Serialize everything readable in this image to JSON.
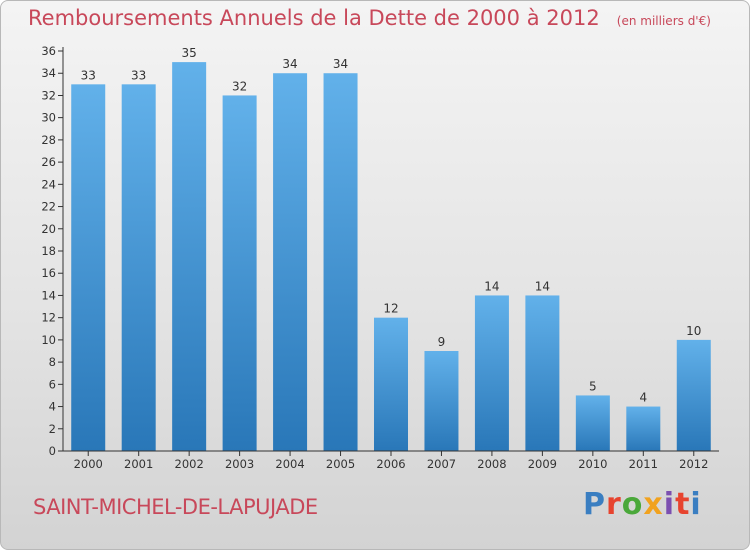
{
  "header": {
    "title": "Remboursements Annuels de la Dette de 2000 à 2012",
    "subtitle": "(en milliers d'€)"
  },
  "footer": {
    "place": "SAINT-MICHEL-DE-LAPUJADE",
    "logo_text": "Proxiti",
    "logo_colors": [
      "#3a7ec1",
      "#e7442f",
      "#4aa83a",
      "#f1a21e",
      "#7b4fb0",
      "#e7442f",
      "#3a7ec1"
    ]
  },
  "colors": {
    "bar": "#4f9fdf",
    "bar_light": "#62b1ea",
    "bar_dark": "#2977b8",
    "title": "#c8485a",
    "axis": "#333333"
  },
  "chart_data": {
    "type": "bar",
    "title": "Remboursements Annuels de la Dette de 2000 à 2012",
    "subtitle": "(en milliers d'€)",
    "categories": [
      "2000",
      "2001",
      "2002",
      "2003",
      "2004",
      "2005",
      "2006",
      "2007",
      "2008",
      "2009",
      "2010",
      "2011",
      "2012"
    ],
    "values": [
      33,
      33,
      35,
      32,
      34,
      34,
      12,
      9,
      14,
      14,
      5,
      4,
      10
    ],
    "data_labels": [
      "33",
      "33",
      "35",
      "32",
      "34",
      "34",
      "12",
      "9",
      "14",
      "14",
      "5",
      "4",
      "10"
    ],
    "ylim": [
      0,
      36
    ],
    "yticks": [
      "0",
      "2",
      "4",
      "6",
      "8",
      "10",
      "12",
      "14",
      "16",
      "18",
      "20",
      "22",
      "24",
      "26",
      "28",
      "30",
      "32",
      "34",
      "36"
    ],
    "xlabel": "",
    "ylabel": "",
    "grid": false,
    "legend": "none"
  }
}
